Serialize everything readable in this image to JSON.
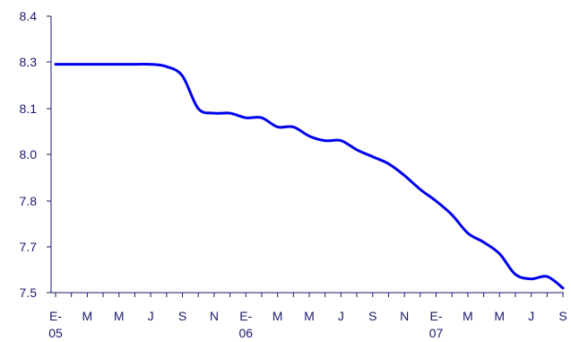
{
  "chart_data": {
    "type": "line",
    "title": "",
    "xlabel": "",
    "ylabel": "",
    "ylim": [
      7.5,
      8.4
    ],
    "y_ticks": [
      "7.5",
      "7.7",
      "7.8",
      "8.0",
      "8.1",
      "8.3",
      "8.4"
    ],
    "x_tick_labels": [
      {
        "line1": "E-",
        "line2": "05"
      },
      {
        "line1": "M",
        "line2": ""
      },
      {
        "line1": "M",
        "line2": ""
      },
      {
        "line1": "J",
        "line2": ""
      },
      {
        "line1": "S",
        "line2": ""
      },
      {
        "line1": "N",
        "line2": ""
      },
      {
        "line1": "E-",
        "line2": "06"
      },
      {
        "line1": "M",
        "line2": ""
      },
      {
        "line1": "M",
        "line2": ""
      },
      {
        "line1": "J",
        "line2": ""
      },
      {
        "line1": "S",
        "line2": ""
      },
      {
        "line1": "N",
        "line2": ""
      },
      {
        "line1": "E-",
        "line2": "07"
      },
      {
        "line1": "M",
        "line2": ""
      },
      {
        "line1": "M",
        "line2": ""
      },
      {
        "line1": "J",
        "line2": ""
      },
      {
        "line1": "S",
        "line2": ""
      }
    ],
    "months": [
      "2005-01",
      "2005-02",
      "2005-03",
      "2005-04",
      "2005-05",
      "2005-06",
      "2005-07",
      "2005-08",
      "2005-09",
      "2005-10",
      "2005-11",
      "2005-12",
      "2006-01",
      "2006-02",
      "2006-03",
      "2006-04",
      "2006-05",
      "2006-06",
      "2006-07",
      "2006-08",
      "2006-09",
      "2006-10",
      "2006-11",
      "2006-12",
      "2007-01",
      "2007-02",
      "2007-03",
      "2007-04",
      "2007-05",
      "2007-06",
      "2007-07",
      "2007-08",
      "2007-09"
    ],
    "series": [
      {
        "color": "#0000ee",
        "values": [
          8.29,
          8.29,
          8.29,
          8.29,
          8.29,
          8.29,
          8.29,
          8.28,
          8.24,
          8.1,
          8.09,
          8.09,
          8.08,
          8.08,
          8.06,
          8.06,
          8.04,
          8.03,
          8.03,
          8.01,
          7.99,
          7.96,
          7.91,
          7.85,
          7.8,
          7.77,
          7.73,
          7.71,
          7.67,
          7.58,
          7.56,
          7.57,
          7.52
        ]
      }
    ]
  }
}
